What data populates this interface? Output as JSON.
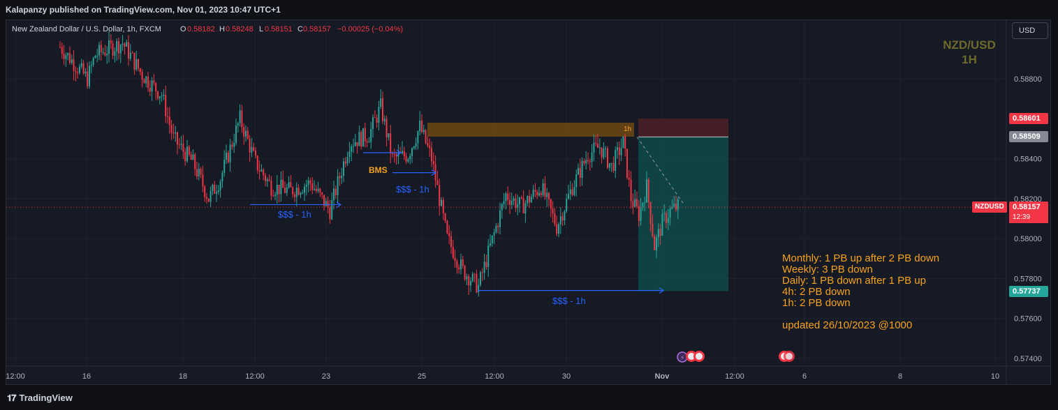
{
  "header": {
    "published": "Kalapanzy published on TradingView.com, Nov 01, 2023 10:47 UTC+1"
  },
  "legend": {
    "symbol": "New Zealand Dollar / U.S. Dollar, 1h, FXCM",
    "open_label": "O",
    "open": "0.58182",
    "high_label": "H",
    "high": "0.58248",
    "low_label": "L",
    "low": "0.58151",
    "close_label": "C",
    "close": "0.58157",
    "change": "−0.00025 (−0.04%)"
  },
  "currency_button": "USD",
  "watermark": {
    "pair": "NZD/USD",
    "timeframe": "1H"
  },
  "price_tags": {
    "stop": "0.58601",
    "entry": "0.58509",
    "last_symbol": "NZDUSD",
    "last": "0.58157",
    "countdown": "12:39",
    "target": "0.57737"
  },
  "annotations": {
    "bms": "BMS",
    "sss_labels": [
      "$$$ - 1h",
      "$$$ - 1h",
      "$$$ - 1h"
    ],
    "zone_label": "1h"
  },
  "notes": {
    "lines": [
      "Monthly: 1 PB up after 2 PB down",
      "Weekly: 3 PB down",
      "Daily: 1 PB down after 1 PB up",
      "4h: 2 PB down",
      "1h: 2 PB down"
    ],
    "updated": "updated 26/10/2023 @1000"
  },
  "colors": {
    "background": "#161a25",
    "grid": "#1f2330",
    "bull": "#26a69a",
    "bear": "#f23645",
    "accent_orange": "#f7a21b",
    "accent_blue": "#2962ff",
    "watermark": "#6f6a2c",
    "profit_zone": "#0e4a49",
    "loss_zone": "#4a1f27"
  },
  "footer": {
    "brand": "TradingView",
    "logo_icon": "tradingview-logo-icon"
  },
  "chart_data": {
    "type": "candlestick",
    "instrument": "NZD/USD",
    "timeframe": "1h",
    "x_ticks": [
      "12:00",
      "16",
      "18",
      "12:00",
      "23",
      "25",
      "12:00",
      "30",
      "Nov",
      "12:00",
      "6",
      "8",
      "10"
    ],
    "y_ticks": [
      0.588,
      0.584,
      0.582,
      0.58,
      0.578,
      0.576,
      0.574
    ],
    "ylim": [
      0.5735,
      0.5905
    ],
    "last_price": 0.58157,
    "path_points": [
      [
        0,
        0.5896
      ],
      [
        14,
        0.588
      ],
      [
        18,
        0.5892
      ],
      [
        32,
        0.5898
      ],
      [
        42,
        0.5882
      ],
      [
        52,
        0.5872
      ],
      [
        58,
        0.585
      ],
      [
        68,
        0.5838
      ],
      [
        76,
        0.582
      ],
      [
        82,
        0.583
      ],
      [
        92,
        0.586
      ],
      [
        100,
        0.5838
      ],
      [
        108,
        0.5826
      ],
      [
        118,
        0.5824
      ],
      [
        128,
        0.5828
      ],
      [
        138,
        0.5814
      ],
      [
        148,
        0.5848
      ],
      [
        158,
        0.5852
      ],
      [
        164,
        0.5866
      ],
      [
        170,
        0.584
      ],
      [
        178,
        0.5842
      ],
      [
        184,
        0.5856
      ],
      [
        190,
        0.584
      ],
      [
        198,
        0.58
      ],
      [
        206,
        0.5784
      ],
      [
        214,
        0.5776
      ],
      [
        220,
        0.5796
      ],
      [
        228,
        0.5822
      ],
      [
        236,
        0.5816
      ],
      [
        246,
        0.5826
      ],
      [
        254,
        0.5806
      ],
      [
        262,
        0.5826
      ],
      [
        270,
        0.5842
      ],
      [
        276,
        0.5846
      ],
      [
        282,
        0.5836
      ],
      [
        288,
        0.5848
      ],
      [
        292,
        0.582
      ],
      [
        296,
        0.5812
      ],
      [
        300,
        0.5826
      ],
      [
        304,
        0.5796
      ],
      [
        308,
        0.5808
      ],
      [
        312,
        0.5814
      ],
      [
        316,
        0.5816
      ]
    ],
    "position": {
      "entry": 0.58509,
      "stop": 0.58601,
      "target": 0.57737
    },
    "supply_zone": {
      "top": 0.5858,
      "bottom": 0.5851,
      "label": "1h"
    },
    "liquidity_lines": [
      {
        "label": "$$$ - 1h",
        "price": 0.5817
      },
      {
        "label": "$$$ - 1h",
        "price": 0.5833
      },
      {
        "label": "$$$ - 1h",
        "price": 0.5774
      }
    ]
  }
}
